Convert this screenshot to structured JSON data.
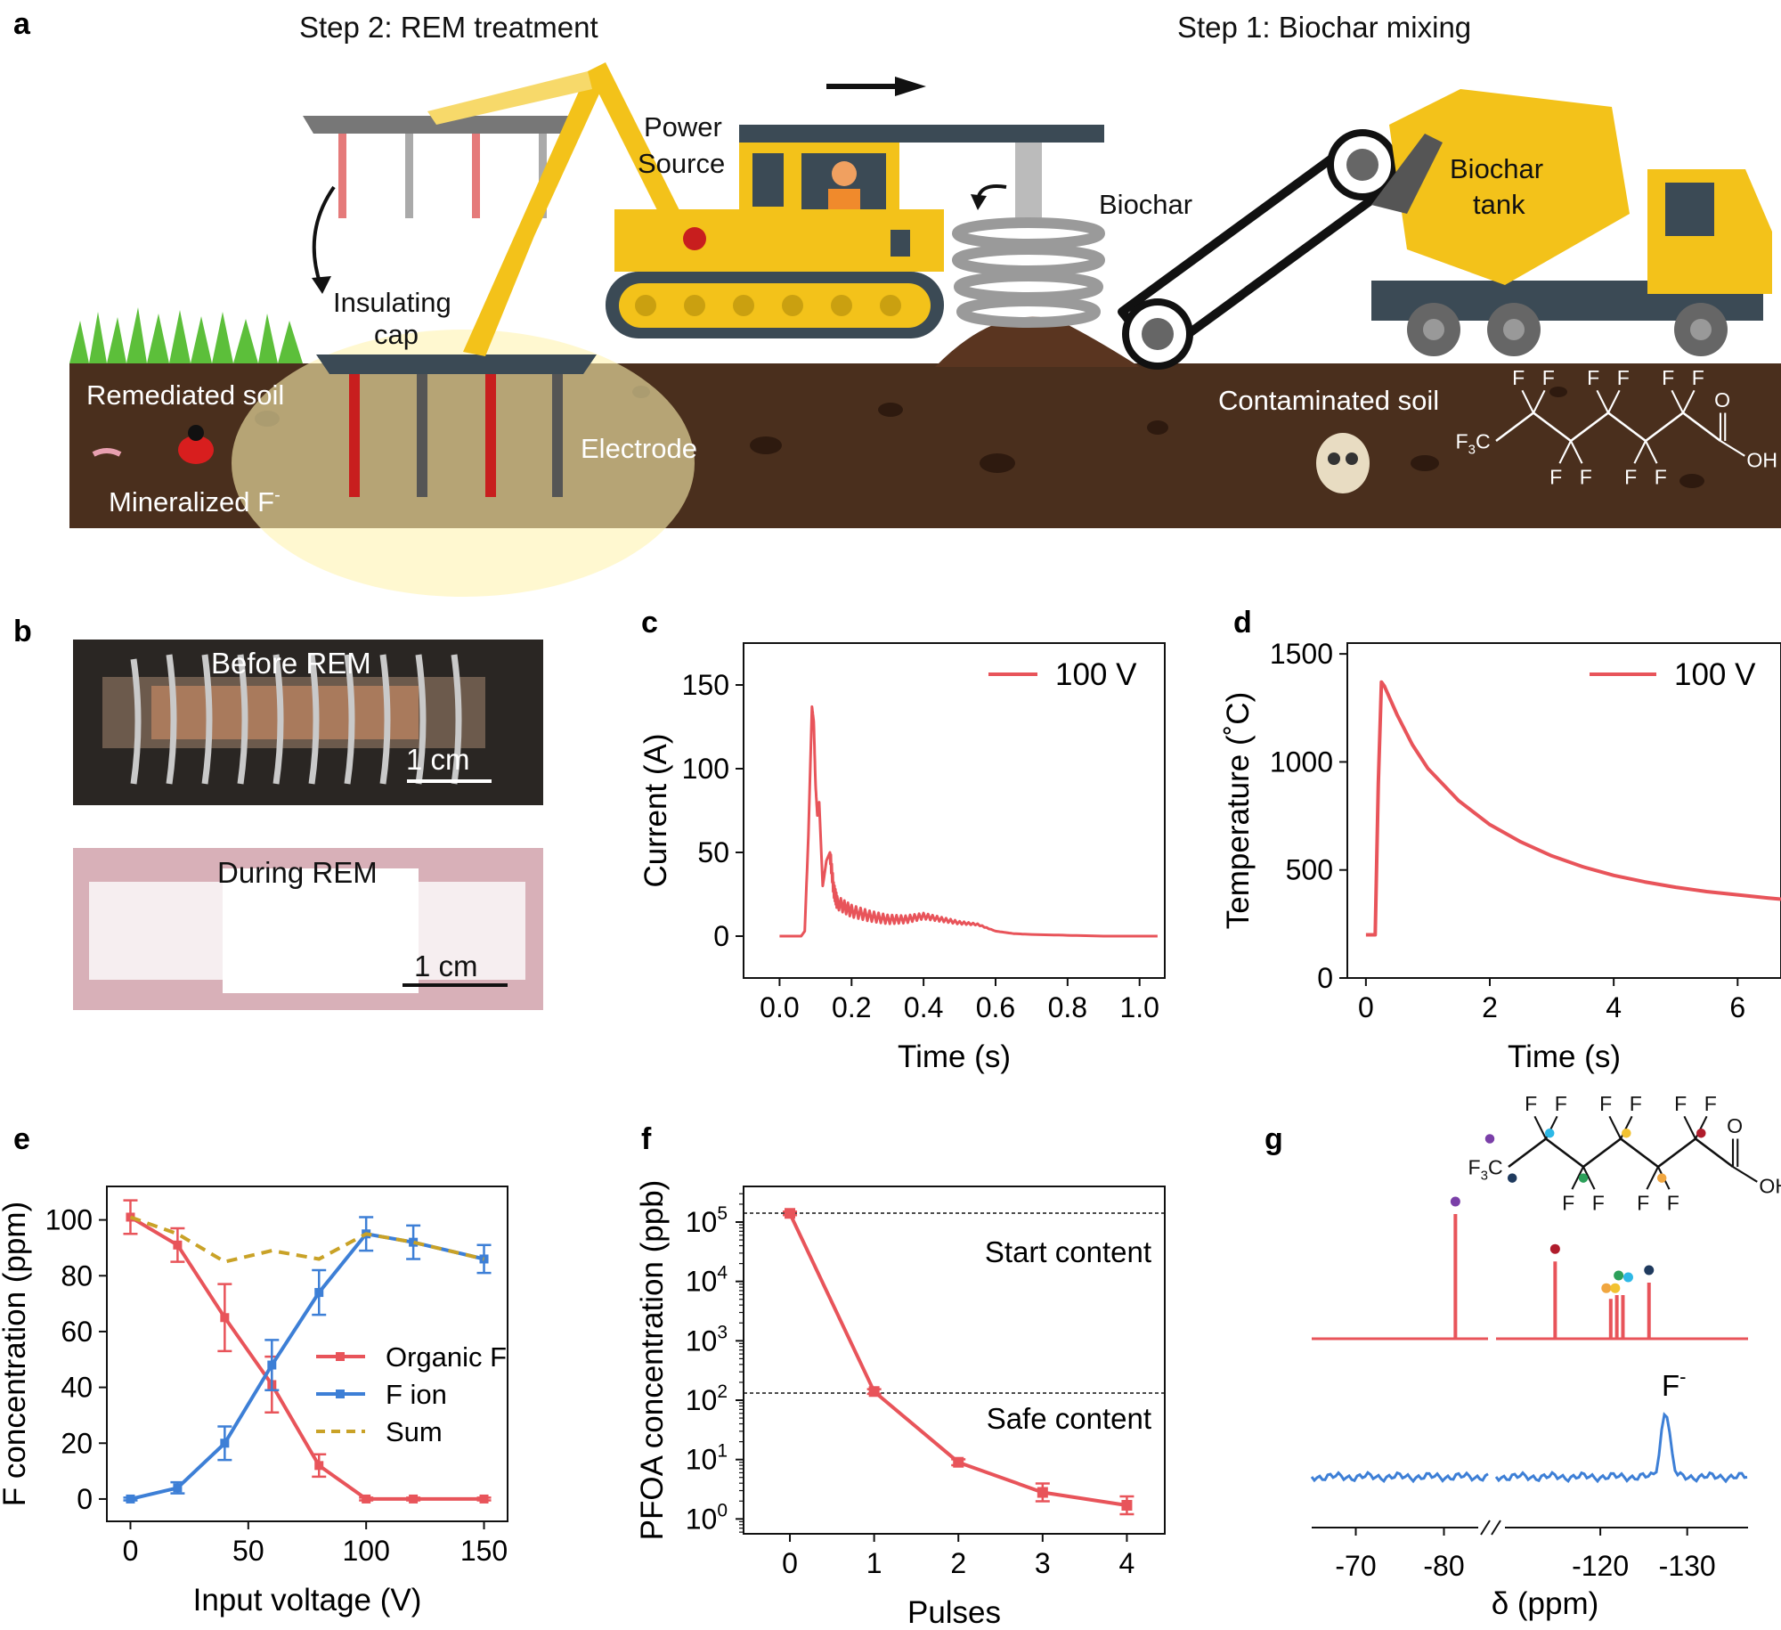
{
  "panel_letters": {
    "a": "a",
    "b": "b",
    "c": "c",
    "d": "d",
    "e": "e",
    "f": "f",
    "g": "g"
  },
  "panel_a": {
    "step2": "Step 2: REM treatment",
    "step1": "Step 1: Biochar mixing",
    "power_source_l1": "Power",
    "power_source_l2": "Source",
    "biochar": "Biochar",
    "biochar_tank_l1": "Biochar",
    "biochar_tank_l2": "tank",
    "insulating_cap_l1": "Insulating",
    "insulating_cap_l2": "cap",
    "remediated_soil": "Remediated soil",
    "mineralized_f": "Mineralized F",
    "mineralized_f_sup": "-",
    "electrode": "Electrode",
    "contaminated_soil": "Contaminated soil",
    "colors": {
      "soil": "#4a2f1d",
      "soil_dark": "#3a2314",
      "sky": "#ffffff",
      "grass": "#5cbf3a",
      "machine": "#f3c21a",
      "machine_dark": "#3b4a55",
      "electrode_red": "#c81e1e",
      "electrode_gray": "#555555",
      "glow": "#fff3b0"
    }
  },
  "panel_b": {
    "top_label": "Before REM",
    "bottom_label": "During REM",
    "scale_top": "1 cm",
    "scale_bottom": "1 cm"
  },
  "molecule": {
    "f": "F",
    "f3c": "F",
    "f3c_sub": "3",
    "c": "C",
    "o": "O",
    "oh": "OH"
  },
  "chart_data": [
    {
      "id": "c",
      "type": "line",
      "xlabel": "Time (s)",
      "ylabel": "Current (A)",
      "xlim": [
        -0.1,
        1.07
      ],
      "ylim": [
        -25,
        175
      ],
      "xticks": [
        0.0,
        0.2,
        0.4,
        0.6,
        0.8,
        1.0
      ],
      "xtick_labels": [
        "0.0",
        "0.2",
        "0.4",
        "0.6",
        "0.8",
        "1.0"
      ],
      "yticks": [
        0,
        50,
        100,
        150
      ],
      "ytick_labels": [
        "0",
        "50",
        "100",
        "150"
      ],
      "legend": "top-right",
      "series": [
        {
          "name": "100 V",
          "color": "#e8545a",
          "x": [
            0.0,
            0.06,
            0.07,
            0.08,
            0.09,
            0.095,
            0.1,
            0.105,
            0.11,
            0.12,
            0.13,
            0.14,
            0.15,
            0.16,
            0.2,
            0.25,
            0.3,
            0.35,
            0.4,
            0.45,
            0.5,
            0.55,
            0.6,
            0.65,
            0.7,
            0.8,
            0.9,
            1.0,
            1.05
          ],
          "y": [
            0,
            0,
            3,
            60,
            137,
            128,
            90,
            72,
            80,
            30,
            45,
            50,
            28,
            20,
            15,
            12,
            10,
            10,
            12,
            10,
            8,
            7,
            3,
            1.5,
            1,
            0.5,
            0,
            0,
            0
          ]
        }
      ]
    },
    {
      "id": "d",
      "type": "line",
      "xlabel": "Time (s)",
      "ylabel": "Temperature (˚C)",
      "xlim": [
        -0.3,
        6.7
      ],
      "ylim": [
        0,
        1550
      ],
      "xticks": [
        0,
        2,
        4,
        6
      ],
      "xtick_labels": [
        "0",
        "2",
        "4",
        "6"
      ],
      "yticks": [
        0,
        500,
        1000,
        1500
      ],
      "ytick_labels": [
        "0",
        "500",
        "1000",
        "1500"
      ],
      "legend": "top-right",
      "series": [
        {
          "name": "100 V",
          "color": "#e8545a",
          "x": [
            0.0,
            0.15,
            0.2,
            0.25,
            0.3,
            0.5,
            0.75,
            1.0,
            1.5,
            2.0,
            2.5,
            3.0,
            3.5,
            4.0,
            4.5,
            5.0,
            5.5,
            6.0,
            6.5,
            6.7
          ],
          "y": [
            200,
            200,
            900,
            1370,
            1350,
            1220,
            1080,
            970,
            820,
            710,
            630,
            565,
            515,
            475,
            445,
            420,
            400,
            385,
            370,
            365
          ]
        }
      ]
    },
    {
      "id": "e",
      "type": "line",
      "xlabel": "Input voltage (V)",
      "ylabel": "F concentration (ppm)",
      "xlim": [
        -10,
        160
      ],
      "ylim": [
        -8,
        112
      ],
      "xticks": [
        0,
        50,
        100,
        150
      ],
      "xtick_labels": [
        "0",
        "50",
        "100",
        "150"
      ],
      "yticks": [
        0,
        20,
        40,
        60,
        80,
        100
      ],
      "ytick_labels": [
        "0",
        "20",
        "40",
        "60",
        "80",
        "100"
      ],
      "legend": "center-right",
      "series": [
        {
          "name": "Organic F",
          "color": "#e8545a",
          "x": [
            0,
            20,
            40,
            60,
            80,
            100,
            120,
            150
          ],
          "y": [
            101,
            91,
            65,
            41,
            12,
            0,
            0,
            0
          ],
          "err": [
            6,
            6,
            12,
            10,
            4,
            0.5,
            0.5,
            0.5
          ]
        },
        {
          "name": "F ion",
          "color": "#3d7fd6",
          "x": [
            0,
            20,
            40,
            60,
            80,
            100,
            120,
            150
          ],
          "y": [
            0,
            4,
            20,
            48,
            74,
            95,
            92,
            86
          ],
          "err": [
            0.5,
            2,
            6,
            9,
            8,
            6,
            6,
            5
          ]
        },
        {
          "name": "Sum",
          "color": "#c9a227",
          "dashed": true,
          "x": [
            0,
            20,
            40,
            60,
            80,
            100,
            120,
            150
          ],
          "y": [
            101,
            95,
            85,
            89,
            86,
            95,
            92,
            86
          ]
        }
      ]
    },
    {
      "id": "f",
      "type": "line",
      "xlabel": "Pulses",
      "ylabel": "PFOA concentration (ppb)",
      "log_y": true,
      "xlim": [
        -0.55,
        4.45
      ],
      "ylim_log10": [
        -0.25,
        5.6
      ],
      "xticks": [
        0,
        1,
        2,
        3,
        4
      ],
      "xtick_labels": [
        "0",
        "1",
        "2",
        "3",
        "4"
      ],
      "yticks_log10": [
        0,
        1,
        2,
        3,
        4,
        5
      ],
      "ytick_base": "10",
      "ytick_exps": [
        "0",
        "1",
        "2",
        "3",
        "4",
        "5"
      ],
      "hlines": [
        {
          "log10": 5.15,
          "label": "Start content"
        },
        {
          "log10": 2.12,
          "label": "Safe content"
        }
      ],
      "series": [
        {
          "name": "",
          "color": "#e8545a",
          "x": [
            0,
            1,
            2,
            3,
            4
          ],
          "y": [
            140000,
            140,
            9,
            2.8,
            1.7
          ],
          "err_log10": [
            0.03,
            0.04,
            0.05,
            0.15,
            0.15
          ]
        }
      ]
    },
    {
      "id": "g",
      "type": "line",
      "xlabel": "δ (ppm)",
      "xtick_labels": [
        "-70",
        "-80",
        "-120",
        "-130"
      ],
      "xticks": [
        -70,
        -80,
        -120,
        -130
      ],
      "annotation": "F",
      "annotation_sup": "-",
      "series": [
        {
          "name": "",
          "color": "#e8545a",
          "peaks": [
            -81.3,
            -114.8,
            -121.2,
            -121.9,
            -122.6,
            -125.6
          ],
          "peak_heights": [
            1.0,
            0.62,
            0.32,
            0.35,
            0.35,
            0.45
          ],
          "peak_dot_colors": [
            "#7a3fa8",
            "#b01c2c",
            "#f0a640",
            "#f2c230",
            "#2ca05a",
            "#2db8e6",
            "#1f3a5e"
          ]
        },
        {
          "name": "",
          "color": "#3d7fd6",
          "peaks": [
            -127.5
          ]
        }
      ]
    }
  ]
}
